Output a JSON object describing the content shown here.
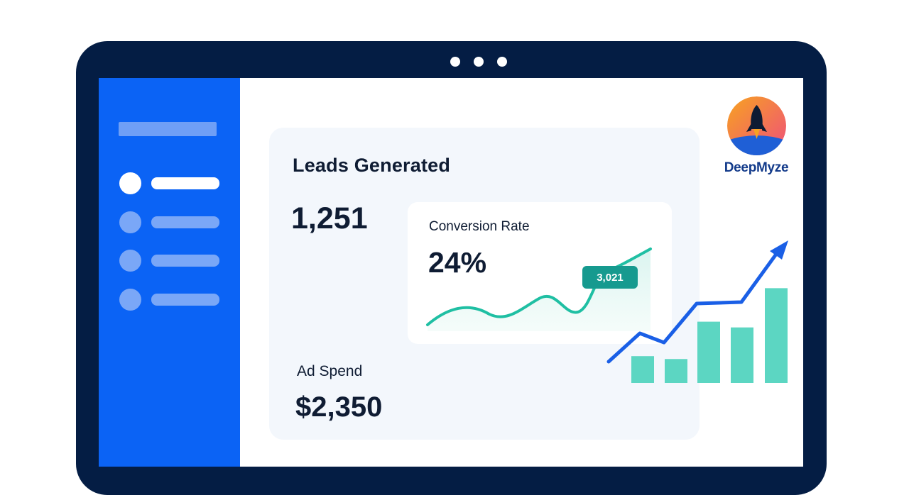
{
  "brand": {
    "name": "DeepMyze",
    "icon": "rocket-icon",
    "badge_colors": [
      "#f7a320",
      "#ef4f7c",
      "#1f5fd6"
    ]
  },
  "window": {
    "controls": [
      "dot",
      "dot",
      "dot"
    ]
  },
  "sidebar": {
    "color": "#0b63f5",
    "items": [
      {
        "name": "sidebar-item-1",
        "active": true
      },
      {
        "name": "sidebar-item-2",
        "active": false
      },
      {
        "name": "sidebar-item-3",
        "active": false
      },
      {
        "name": "sidebar-item-4",
        "active": false
      }
    ]
  },
  "leads": {
    "title": "Leads Generated",
    "value": "1,251"
  },
  "conversion": {
    "label": "Conversion Rate",
    "value": "24%",
    "tooltip": "3,021",
    "line_color": "#1fbfa3"
  },
  "ad_spend": {
    "label": "Ad Spend",
    "value": "$2,350"
  },
  "growth_chart": {
    "bar_color": "#5cd6c2",
    "arrow_color": "#1a5fe6",
    "bars": [
      0.28,
      0.25,
      0.64,
      0.58,
      0.99
    ]
  }
}
